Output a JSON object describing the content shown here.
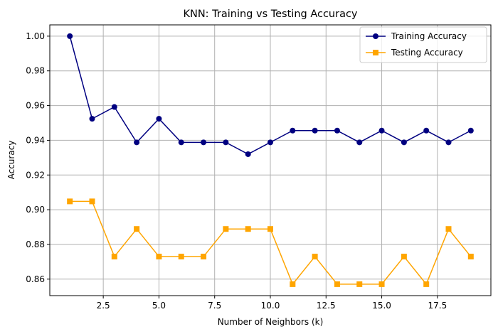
{
  "chart_data": {
    "type": "line",
    "title": "KNN: Training vs Testing Accuracy",
    "xlabel": "Number of Neighbors (k)",
    "ylabel": "Accuracy",
    "x": [
      1,
      2,
      3,
      4,
      5,
      6,
      7,
      8,
      9,
      10,
      11,
      12,
      13,
      14,
      15,
      16,
      17,
      18,
      19
    ],
    "xlim": [
      0.1,
      19.9
    ],
    "ylim": [
      0.8505,
      1.0065
    ],
    "xticks": [
      2.5,
      5.0,
      7.5,
      10.0,
      12.5,
      15.0,
      17.5
    ],
    "xtick_labels": [
      "2.5",
      "5.0",
      "7.5",
      "10.0",
      "12.5",
      "15.0",
      "17.5"
    ],
    "yticks": [
      0.86,
      0.88,
      0.9,
      0.92,
      0.94,
      0.96,
      0.98,
      1.0
    ],
    "ytick_labels": [
      "0.86",
      "0.88",
      "0.90",
      "0.92",
      "0.94",
      "0.96",
      "0.98",
      "1.00"
    ],
    "grid": true,
    "legend_position": "top-right",
    "series": [
      {
        "name": "Training Accuracy",
        "color": "#000080",
        "marker": "circle",
        "values": [
          1.0,
          0.9524,
          0.9592,
          0.9388,
          0.9524,
          0.9388,
          0.9388,
          0.9388,
          0.932,
          0.9388,
          0.9456,
          0.9456,
          0.9456,
          0.9388,
          0.9456,
          0.9388,
          0.9456,
          0.9388,
          0.9456
        ]
      },
      {
        "name": "Testing Accuracy",
        "color": "#FFA500",
        "marker": "square",
        "values": [
          0.9048,
          0.9048,
          0.873,
          0.8889,
          0.873,
          0.873,
          0.873,
          0.8889,
          0.8889,
          0.8889,
          0.8571,
          0.873,
          0.8571,
          0.8571,
          0.8571,
          0.873,
          0.8571,
          0.8889,
          0.873
        ]
      }
    ]
  }
}
